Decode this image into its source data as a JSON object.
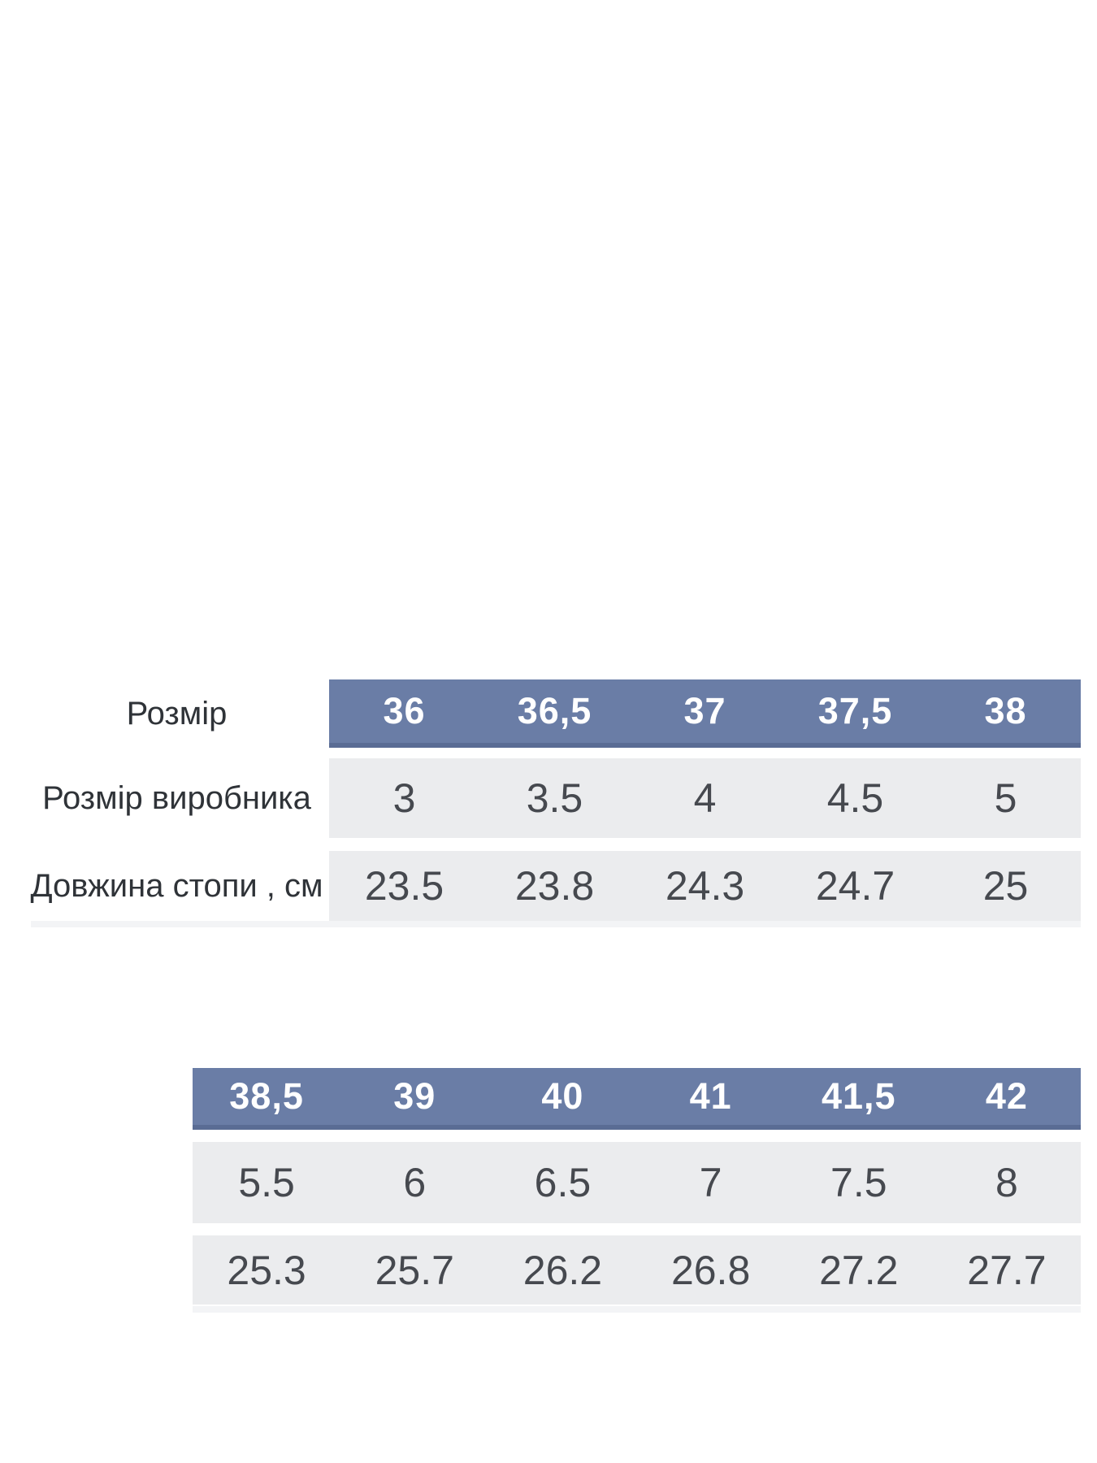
{
  "colors": {
    "header_bg": "#6a7da6",
    "header_bottom_edge": "#5a6c94",
    "header_text": "#ffffff",
    "row_bg": "#ebecee",
    "value_text": "#46494f",
    "label_text": "#2f3338",
    "table_bottom_strip": "#f3f4f6",
    "page_bg": "#ffffff"
  },
  "size_chart": {
    "row_labels": {
      "size": "Розмір",
      "manufacturer": "Розмір виробника",
      "foot_length": "Довжина стопи , см"
    },
    "table1": {
      "sizes": [
        "36",
        "36,5",
        "37",
        "37,5",
        "38"
      ],
      "manufacturer_sizes": [
        "3",
        "3.5",
        "4",
        "4.5",
        "5"
      ],
      "foot_lengths_cm": [
        "23.5",
        "23.8",
        "24.3",
        "24.7",
        "25"
      ]
    },
    "table2": {
      "sizes": [
        "38,5",
        "39",
        "40",
        "41",
        "41,5",
        "42"
      ],
      "manufacturer_sizes": [
        "5.5",
        "6",
        "6.5",
        "7",
        "7.5",
        "8"
      ],
      "foot_lengths_cm": [
        "25.3",
        "25.7",
        "26.2",
        "26.8",
        "27.2",
        "27.7"
      ]
    }
  },
  "chart_data": [
    {
      "type": "table",
      "title": "",
      "row_headers": [
        "Розмір",
        "Розмір виробника",
        "Довжина стопи , см"
      ],
      "columns": [
        "36",
        "36,5",
        "37",
        "37,5",
        "38"
      ],
      "rows": [
        [
          "36",
          "36,5",
          "37",
          "37,5",
          "38"
        ],
        [
          "3",
          "3.5",
          "4",
          "4.5",
          "5"
        ],
        [
          "23.5",
          "23.8",
          "24.3",
          "24.7",
          "25"
        ]
      ],
      "layout_hints": {
        "header_row_style": "blue band, white bold text",
        "body_row_style": "light gray bands separated by white gaps",
        "label_column": "left, unshaded"
      }
    },
    {
      "type": "table",
      "title": "",
      "row_headers": [],
      "columns": [
        "38,5",
        "39",
        "40",
        "41",
        "41,5",
        "42"
      ],
      "rows": [
        [
          "38,5",
          "39",
          "40",
          "41",
          "41,5",
          "42"
        ],
        [
          "5.5",
          "6",
          "6.5",
          "7",
          "7.5",
          "8"
        ],
        [
          "25.3",
          "25.7",
          "26.2",
          "26.8",
          "27.2",
          "27.7"
        ]
      ],
      "layout_hints": {
        "continuation_of": "table 1 (same three rows: size, manufacturer size, foot length cm)",
        "header_row_style": "blue band, white bold text",
        "body_row_style": "light gray bands separated by white gaps"
      }
    }
  ]
}
